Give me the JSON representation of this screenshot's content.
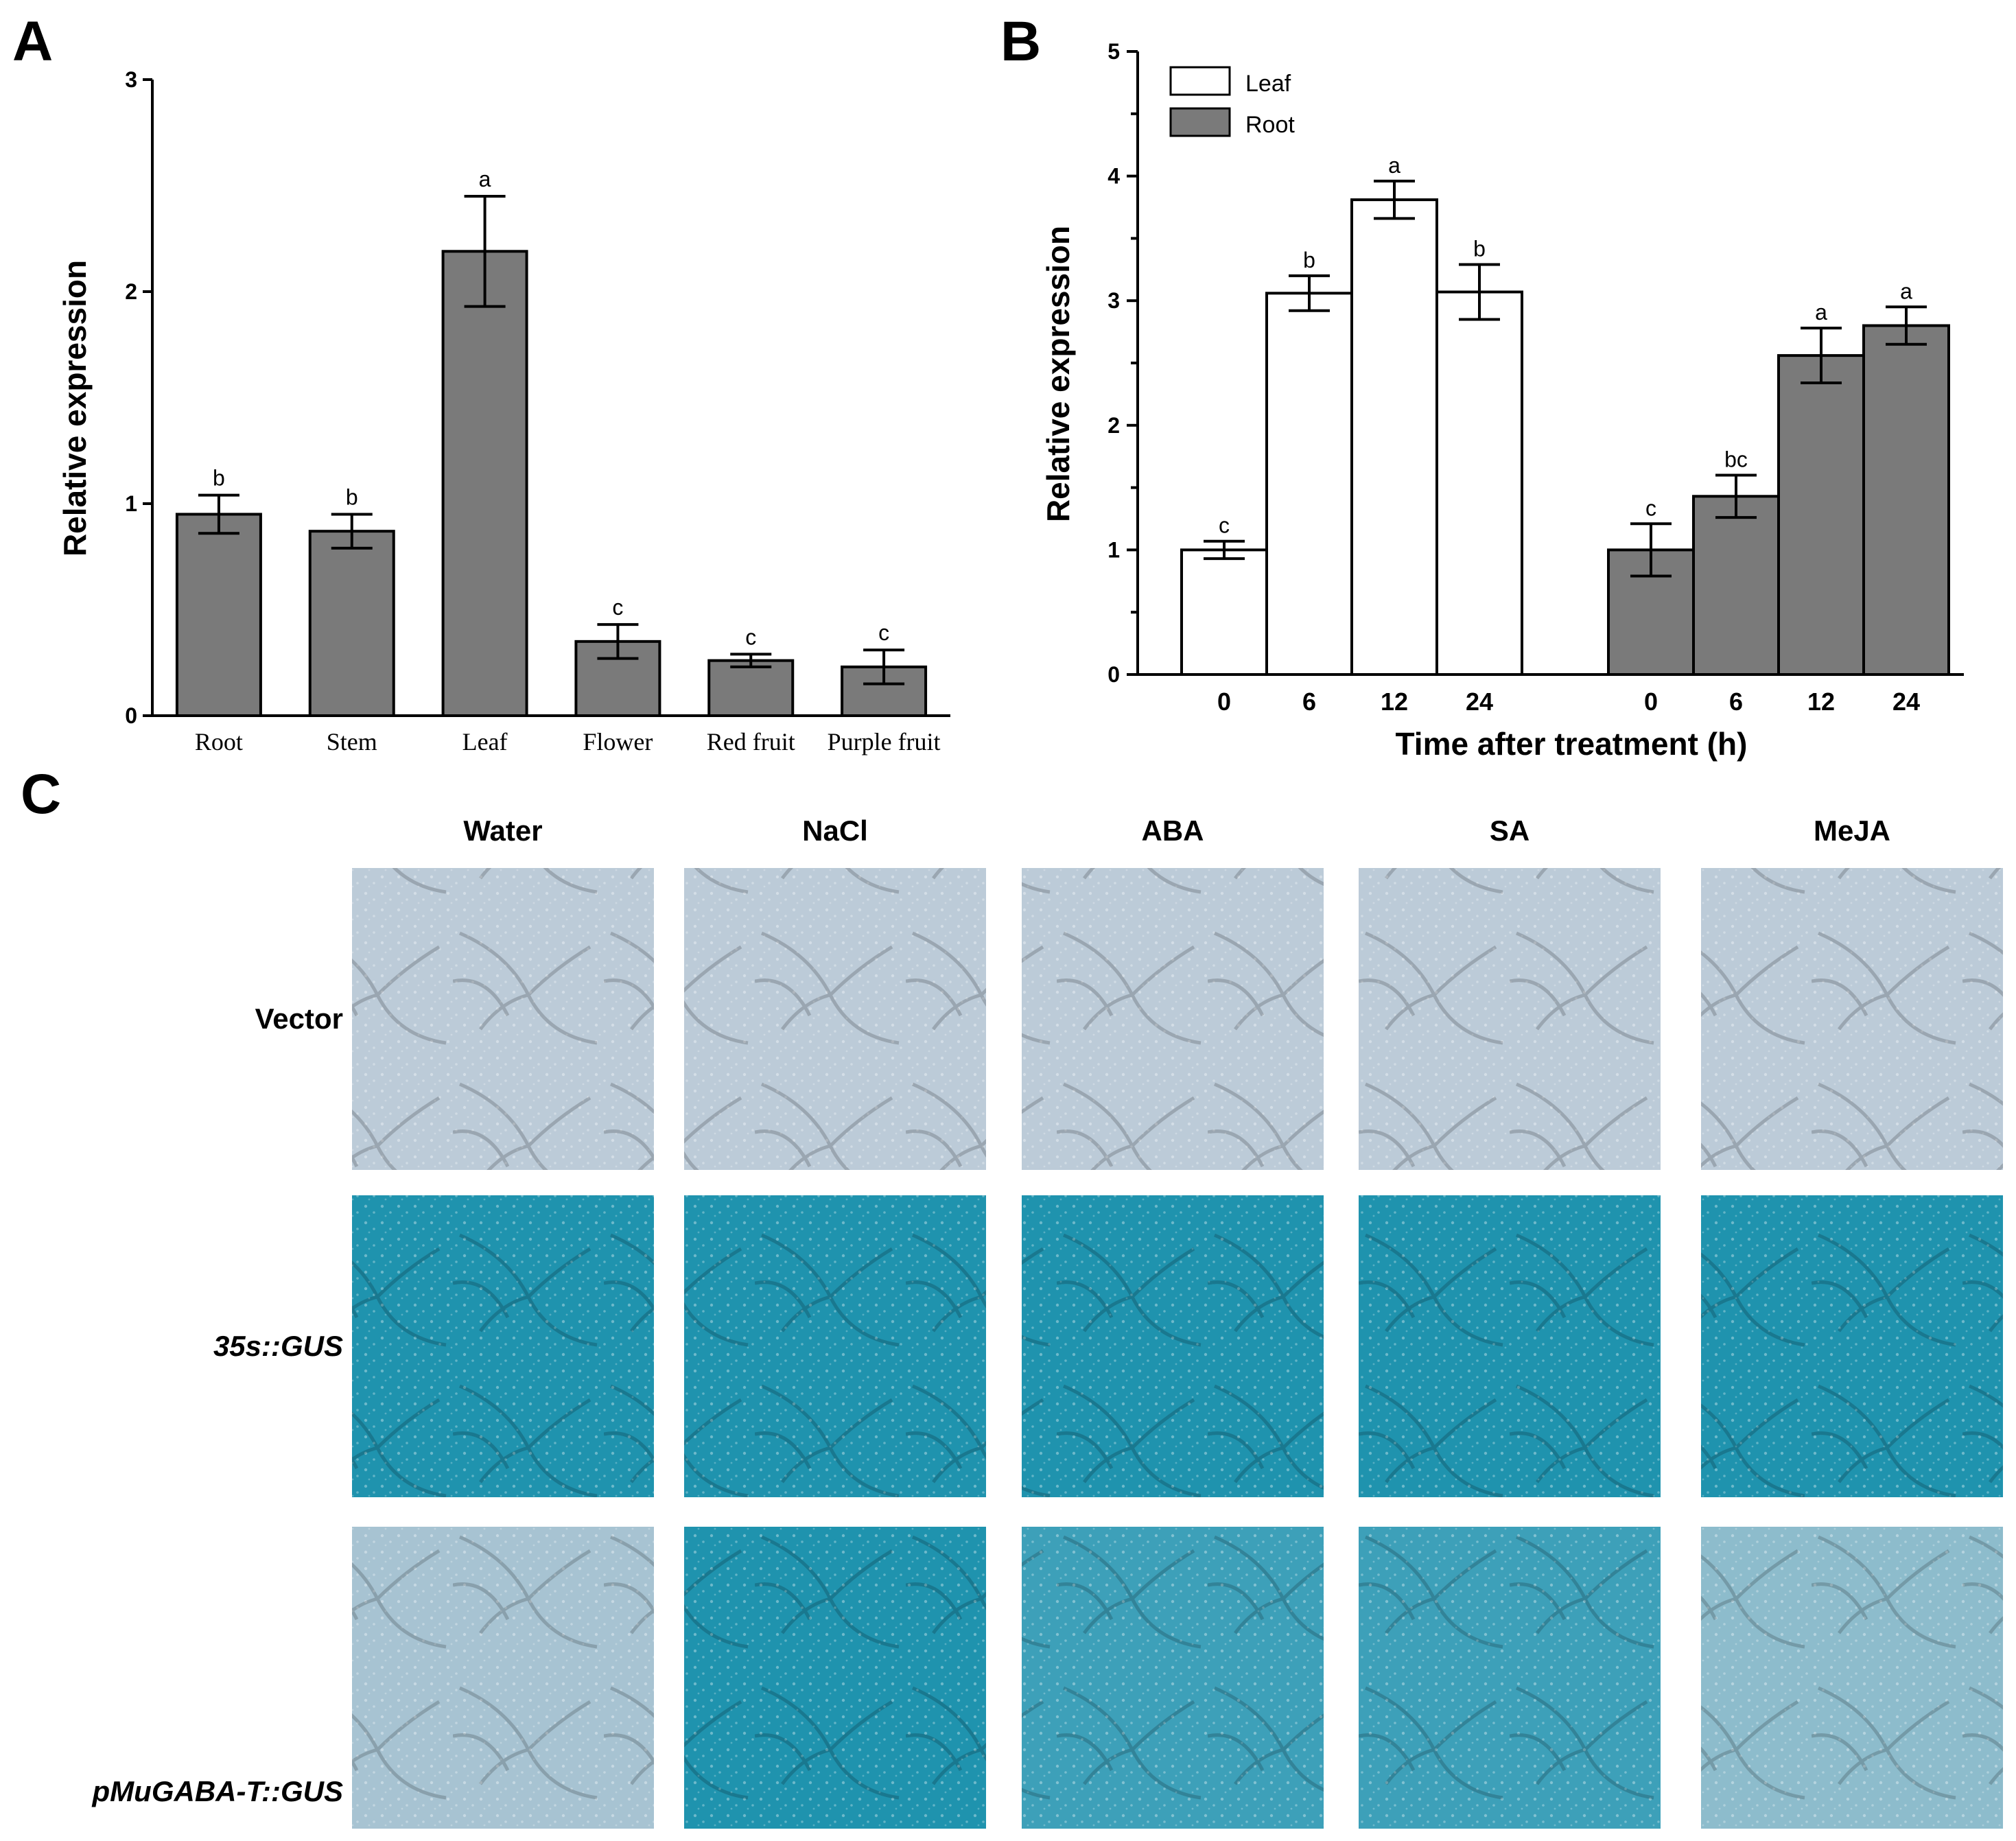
{
  "panels": {
    "a": "A",
    "b": "B",
    "c": "C"
  },
  "colors": {
    "bar_gray": "#7a7a7a",
    "bar_white": "#ffffff",
    "axis": "#000000",
    "stain_none": "#bccbd8",
    "stain_mid": "#6fb3c7",
    "stain_strong": "#1f93ae"
  },
  "chart_data": [
    {
      "id": "A",
      "type": "bar",
      "ylabel": "Relative expression",
      "xlabel": "",
      "ylim": [
        0,
        3
      ],
      "yticks": [
        "0",
        "1",
        "2",
        "3"
      ],
      "categories": [
        "Root",
        "Stem",
        "Leaf",
        "Flower",
        "Red fruit",
        "Purple fruit"
      ],
      "values": [
        0.95,
        0.87,
        2.19,
        0.35,
        0.26,
        0.23
      ],
      "errors": [
        0.09,
        0.08,
        0.26,
        0.08,
        0.03,
        0.08
      ],
      "letters": [
        "b",
        "b",
        "a",
        "c",
        "c",
        "c"
      ]
    },
    {
      "id": "B",
      "type": "bar",
      "ylabel": "Relative expression",
      "xlabel": "Time after treatment (h)",
      "ylim": [
        0,
        5
      ],
      "yticks": [
        "0",
        "1",
        "2",
        "3",
        "4",
        "5"
      ],
      "categories": [
        "0",
        "6",
        "12",
        "24"
      ],
      "legend_position": "top-left",
      "series": [
        {
          "name": "Leaf",
          "values": [
            1.0,
            3.06,
            3.81,
            3.07
          ],
          "errors": [
            0.07,
            0.14,
            0.15,
            0.22
          ],
          "letters": [
            "c",
            "b",
            "a",
            "b"
          ]
        },
        {
          "name": "Root",
          "values": [
            1.0,
            1.43,
            2.56,
            2.8
          ],
          "errors": [
            0.21,
            0.17,
            0.22,
            0.15
          ],
          "letters": [
            "c",
            "bc",
            "a",
            "a"
          ]
        }
      ]
    }
  ],
  "staining": {
    "columns": [
      "Water",
      "NaCl",
      "ABA",
      "SA",
      "MeJA"
    ],
    "rows": [
      {
        "label": "Vector",
        "italic": false,
        "levels": [
          0,
          0,
          0,
          0,
          0
        ]
      },
      {
        "label": "35s::GUS",
        "italic": true,
        "levels": [
          3,
          3,
          3,
          3,
          3
        ]
      },
      {
        "label": "pMuGABA-T::GUS",
        "italic": true,
        "levels": [
          0.5,
          3,
          2,
          2,
          1
        ]
      }
    ]
  }
}
